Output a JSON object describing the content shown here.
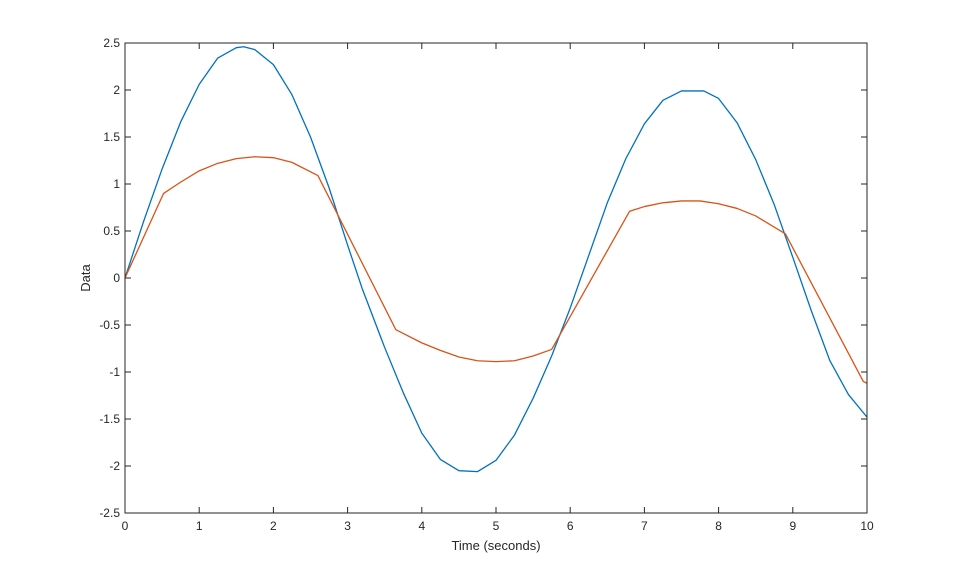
{
  "chart_data": {
    "type": "line",
    "title": "",
    "xlabel": "Time (seconds)",
    "ylabel": "Data",
    "xlim": [
      0,
      10
    ],
    "ylim": [
      -2.5,
      2.5
    ],
    "xticks": [
      0,
      1,
      2,
      3,
      4,
      5,
      6,
      7,
      8,
      9,
      10
    ],
    "xtick_labels": [
      "0",
      "1",
      "2",
      "3",
      "4",
      "5",
      "6",
      "7",
      "8",
      "9",
      "10"
    ],
    "yticks": [
      -2.5,
      -2,
      -1.5,
      -1,
      -0.5,
      0,
      0.5,
      1,
      1.5,
      2,
      2.5
    ],
    "ytick_labels": [
      "-2.5",
      "-2",
      "-1.5",
      "-1",
      "-0.5",
      "0",
      "0.5",
      "1",
      "1.5",
      "2",
      "2.5"
    ],
    "grid": false,
    "box": true,
    "series": [
      {
        "color": "#0072BD",
        "x": [
          0,
          0.25,
          0.5,
          0.75,
          1,
          1.25,
          1.5,
          1.6,
          1.75,
          2,
          2.25,
          2.5,
          2.75,
          3,
          3.2,
          3.5,
          3.75,
          4,
          4.25,
          4.5,
          4.75,
          5,
          5.25,
          5.5,
          5.75,
          6,
          6.25,
          6.5,
          6.75,
          7,
          7.25,
          7.5,
          7.8,
          8,
          8.25,
          8.5,
          8.75,
          9,
          9.25,
          9.5,
          9.75,
          10
        ],
        "y": [
          0,
          0.6,
          1.16,
          1.66,
          2.06,
          2.34,
          2.45,
          2.46,
          2.43,
          2.27,
          1.95,
          1.5,
          0.96,
          0.35,
          -0.12,
          -0.74,
          -1.22,
          -1.65,
          -1.93,
          -2.05,
          -2.06,
          -1.94,
          -1.67,
          -1.28,
          -0.83,
          -0.32,
          0.24,
          0.8,
          1.27,
          1.64,
          1.89,
          1.99,
          1.99,
          1.91,
          1.65,
          1.26,
          0.78,
          0.22,
          -0.35,
          -0.88,
          -1.24,
          -1.48
        ]
      },
      {
        "color": "#D95319",
        "x": [
          0,
          0.52,
          0.75,
          1,
          1.25,
          1.5,
          1.75,
          2,
          2.25,
          2.6,
          3.65,
          4,
          4.25,
          4.5,
          4.75,
          5,
          5.25,
          5.5,
          5.75,
          6.8,
          7,
          7.25,
          7.5,
          7.75,
          8,
          8.25,
          8.5,
          8.9,
          9.95,
          10
        ],
        "y": [
          0,
          0.9,
          1.02,
          1.14,
          1.22,
          1.27,
          1.29,
          1.28,
          1.23,
          1.09,
          -0.55,
          -0.69,
          -0.77,
          -0.84,
          -0.88,
          -0.89,
          -0.88,
          -0.83,
          -0.76,
          0.71,
          0.76,
          0.8,
          0.82,
          0.82,
          0.79,
          0.74,
          0.66,
          0.47,
          -1.1,
          -1.12
        ]
      }
    ]
  }
}
